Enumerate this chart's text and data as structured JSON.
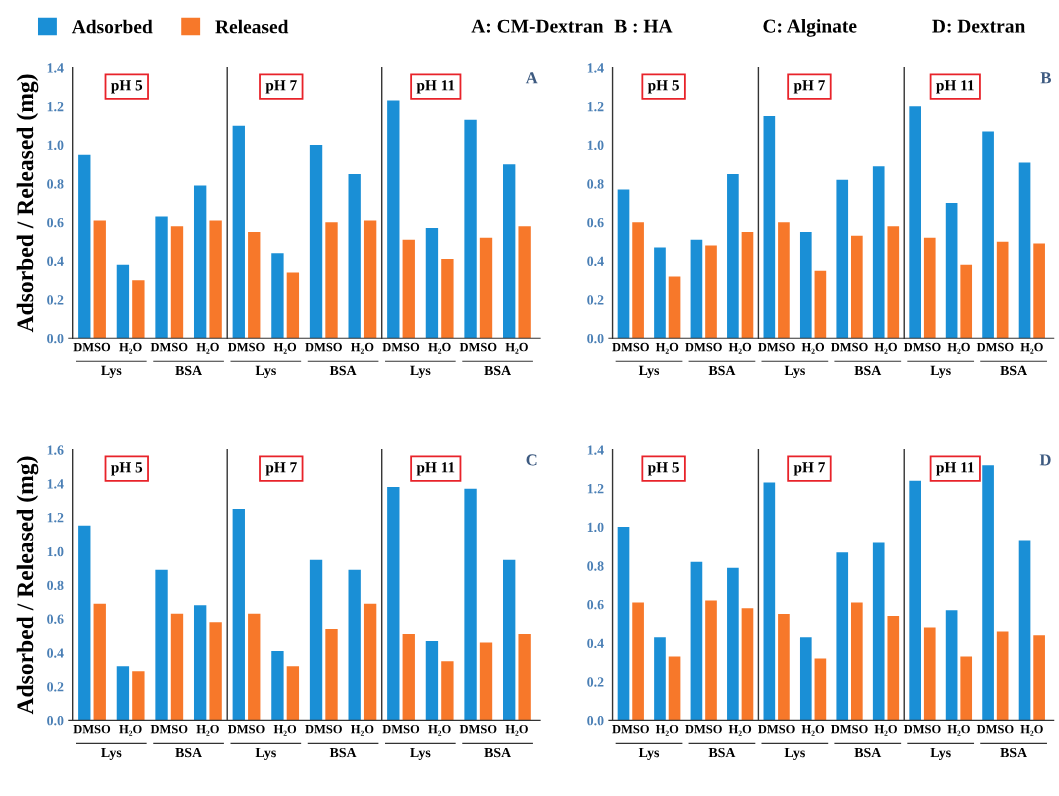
{
  "chart_data": [
    {
      "type": "bar",
      "ylabel": "Adsorbed / Released (mg)",
      "categories": [
        "DMSO",
        "H₂O",
        "DMSO",
        "H₂O",
        "DMSO",
        "H₂O",
        "DMSO",
        "H₂O",
        "DMSO",
        "H₂O",
        "DMSO",
        "H₂O"
      ],
      "ylim": [
        0,
        1.4
      ],
      "yticks": [
        {
          "value": 0,
          "label": "0.0"
        },
        {
          "value": 0.2,
          "label": "0.2"
        },
        {
          "value": 0.4,
          "label": "0.4"
        },
        {
          "value": 0.6,
          "label": "0.6"
        },
        {
          "value": 0.8,
          "label": "0.8"
        },
        {
          "value": 1.0,
          "label": "1.0"
        },
        {
          "value": 1.2,
          "label": "1.2"
        },
        {
          "value": 1.4,
          "label": "1.4"
        }
      ],
      "legend": "top left",
      "grid": false,
      "series": [
        {
          "name": "Adsorbed",
          "color": "#1a8fd6",
          "values": [
            0.95,
            0.38,
            0.63,
            0.79,
            1.1,
            0.44,
            1.0,
            0.85,
            1.23,
            0.57,
            1.13,
            0.9
          ]
        },
        {
          "name": "Released",
          "color": "#f7782a",
          "values": [
            0.61,
            0.3,
            0.58,
            0.61,
            0.55,
            0.34,
            0.6,
            0.61,
            0.51,
            0.41,
            0.52,
            0.58
          ]
        }
      ],
      "annotations": [
        "pH 5",
        "pH 7",
        "pH 11",
        "Lys",
        "BSA",
        "Lys",
        "BSA",
        "Lys",
        "BSA",
        "A",
        "A: CM-Dextran",
        "B : HA",
        "C: Alginate",
        "D: Dextran"
      ]
    },
    {
      "type": "bar",
      "categories": [
        "DMSO",
        "H₂O",
        "DMSO",
        "H₂O",
        "DMSO",
        "H₂O",
        "DMSO",
        "H₂O",
        "DMSO",
        "H₂O",
        "DMSO",
        "H₂O"
      ],
      "ylim": [
        0,
        1.4
      ],
      "yticks": [
        {
          "value": 0,
          "label": "0.0"
        },
        {
          "value": 0.2,
          "label": "0.2"
        },
        {
          "value": 0.4,
          "label": "0.4"
        },
        {
          "value": 0.6,
          "label": "0.6"
        },
        {
          "value": 0.8,
          "label": "0.8"
        },
        {
          "value": 1.0,
          "label": "1.0"
        },
        {
          "value": 1.2,
          "label": "1.2"
        },
        {
          "value": 1.4,
          "label": "1.4"
        }
      ],
      "grid": false,
      "series": [
        {
          "color": "#1a8fd6",
          "values": [
            0.77,
            0.47,
            0.51,
            0.85,
            1.15,
            0.55,
            0.82,
            0.89,
            1.2,
            0.7,
            1.07,
            0.91
          ]
        },
        {
          "color": "#f7782a",
          "values": [
            0.6,
            0.32,
            0.48,
            0.55,
            0.6,
            0.35,
            0.53,
            0.58,
            0.52,
            0.38,
            0.5,
            0.49
          ]
        }
      ],
      "annotations": [
        "pH 5",
        "pH 7",
        "pH 11",
        "Lys",
        "BSA",
        "Lys",
        "BSA",
        "Lys",
        "BSA",
        "B"
      ]
    },
    {
      "type": "bar",
      "ylabel": "Adsorbed / Released (mg)",
      "categories": [
        "DMSO",
        "H₂O",
        "DMSO",
        "H₂O",
        "DMSO",
        "H₂O",
        "DMSO",
        "H₂O",
        "DMSO",
        "H₂O",
        "DMSO",
        "H₂O"
      ],
      "ylim": [
        0,
        1.6
      ],
      "yticks": [
        {
          "value": 0,
          "label": "0.0"
        },
        {
          "value": 0.2,
          "label": "0.2"
        },
        {
          "value": 0.4,
          "label": "0.4"
        },
        {
          "value": 0.6,
          "label": "0.6"
        },
        {
          "value": 0.8,
          "label": "0.8"
        },
        {
          "value": 1.0,
          "label": "1.0"
        },
        {
          "value": 1.2,
          "label": "1.2"
        },
        {
          "value": 1.4,
          "label": "1.4"
        },
        {
          "value": 1.6,
          "label": "1.6"
        }
      ],
      "grid": false,
      "series": [
        {
          "color": "#1a8fd6",
          "values": [
            1.15,
            0.32,
            0.89,
            0.68,
            1.25,
            0.41,
            0.95,
            0.89,
            1.38,
            0.47,
            1.37,
            0.95
          ]
        },
        {
          "color": "#f7782a",
          "values": [
            0.69,
            0.29,
            0.63,
            0.58,
            0.63,
            0.32,
            0.54,
            0.69,
            0.51,
            0.35,
            0.46,
            0.51
          ]
        }
      ],
      "annotations": [
        "pH 5",
        "pH 7",
        "pH 11",
        "Lys",
        "BSA",
        "Lys",
        "BSA",
        "Lys",
        "BSA",
        "C"
      ]
    },
    {
      "type": "bar",
      "categories": [
        "DMSO",
        "H₂O",
        "DMSO",
        "H₂O",
        "DMSO",
        "H₂O",
        "DMSO",
        "H₂O",
        "DMSO",
        "H₂O",
        "DMSO",
        "H₂O"
      ],
      "ylim": [
        0,
        1.4
      ],
      "yticks": [
        {
          "value": 0,
          "label": "0.0"
        },
        {
          "value": 0.2,
          "label": "0.2"
        },
        {
          "value": 0.4,
          "label": "0.4"
        },
        {
          "value": 0.6,
          "label": "0.6"
        },
        {
          "value": 0.8,
          "label": "0.8"
        },
        {
          "value": 1.0,
          "label": "1.0"
        },
        {
          "value": 1.2,
          "label": "1.2"
        },
        {
          "value": 1.4,
          "label": "1.4"
        }
      ],
      "grid": false,
      "series": [
        {
          "color": "#1a8fd6",
          "values": [
            1.0,
            0.43,
            0.82,
            0.79,
            1.23,
            0.43,
            0.87,
            0.92,
            1.24,
            0.57,
            1.32,
            0.93
          ]
        },
        {
          "color": "#f7782a",
          "values": [
            0.61,
            0.33,
            0.62,
            0.58,
            0.55,
            0.32,
            0.61,
            0.54,
            0.48,
            0.33,
            0.46,
            0.44
          ]
        }
      ],
      "annotations": [
        "pH 5",
        "pH 7",
        "pH 11",
        "Lys",
        "BSA",
        "Lys",
        "BSA",
        "Lys",
        "BSA",
        "D"
      ]
    }
  ]
}
